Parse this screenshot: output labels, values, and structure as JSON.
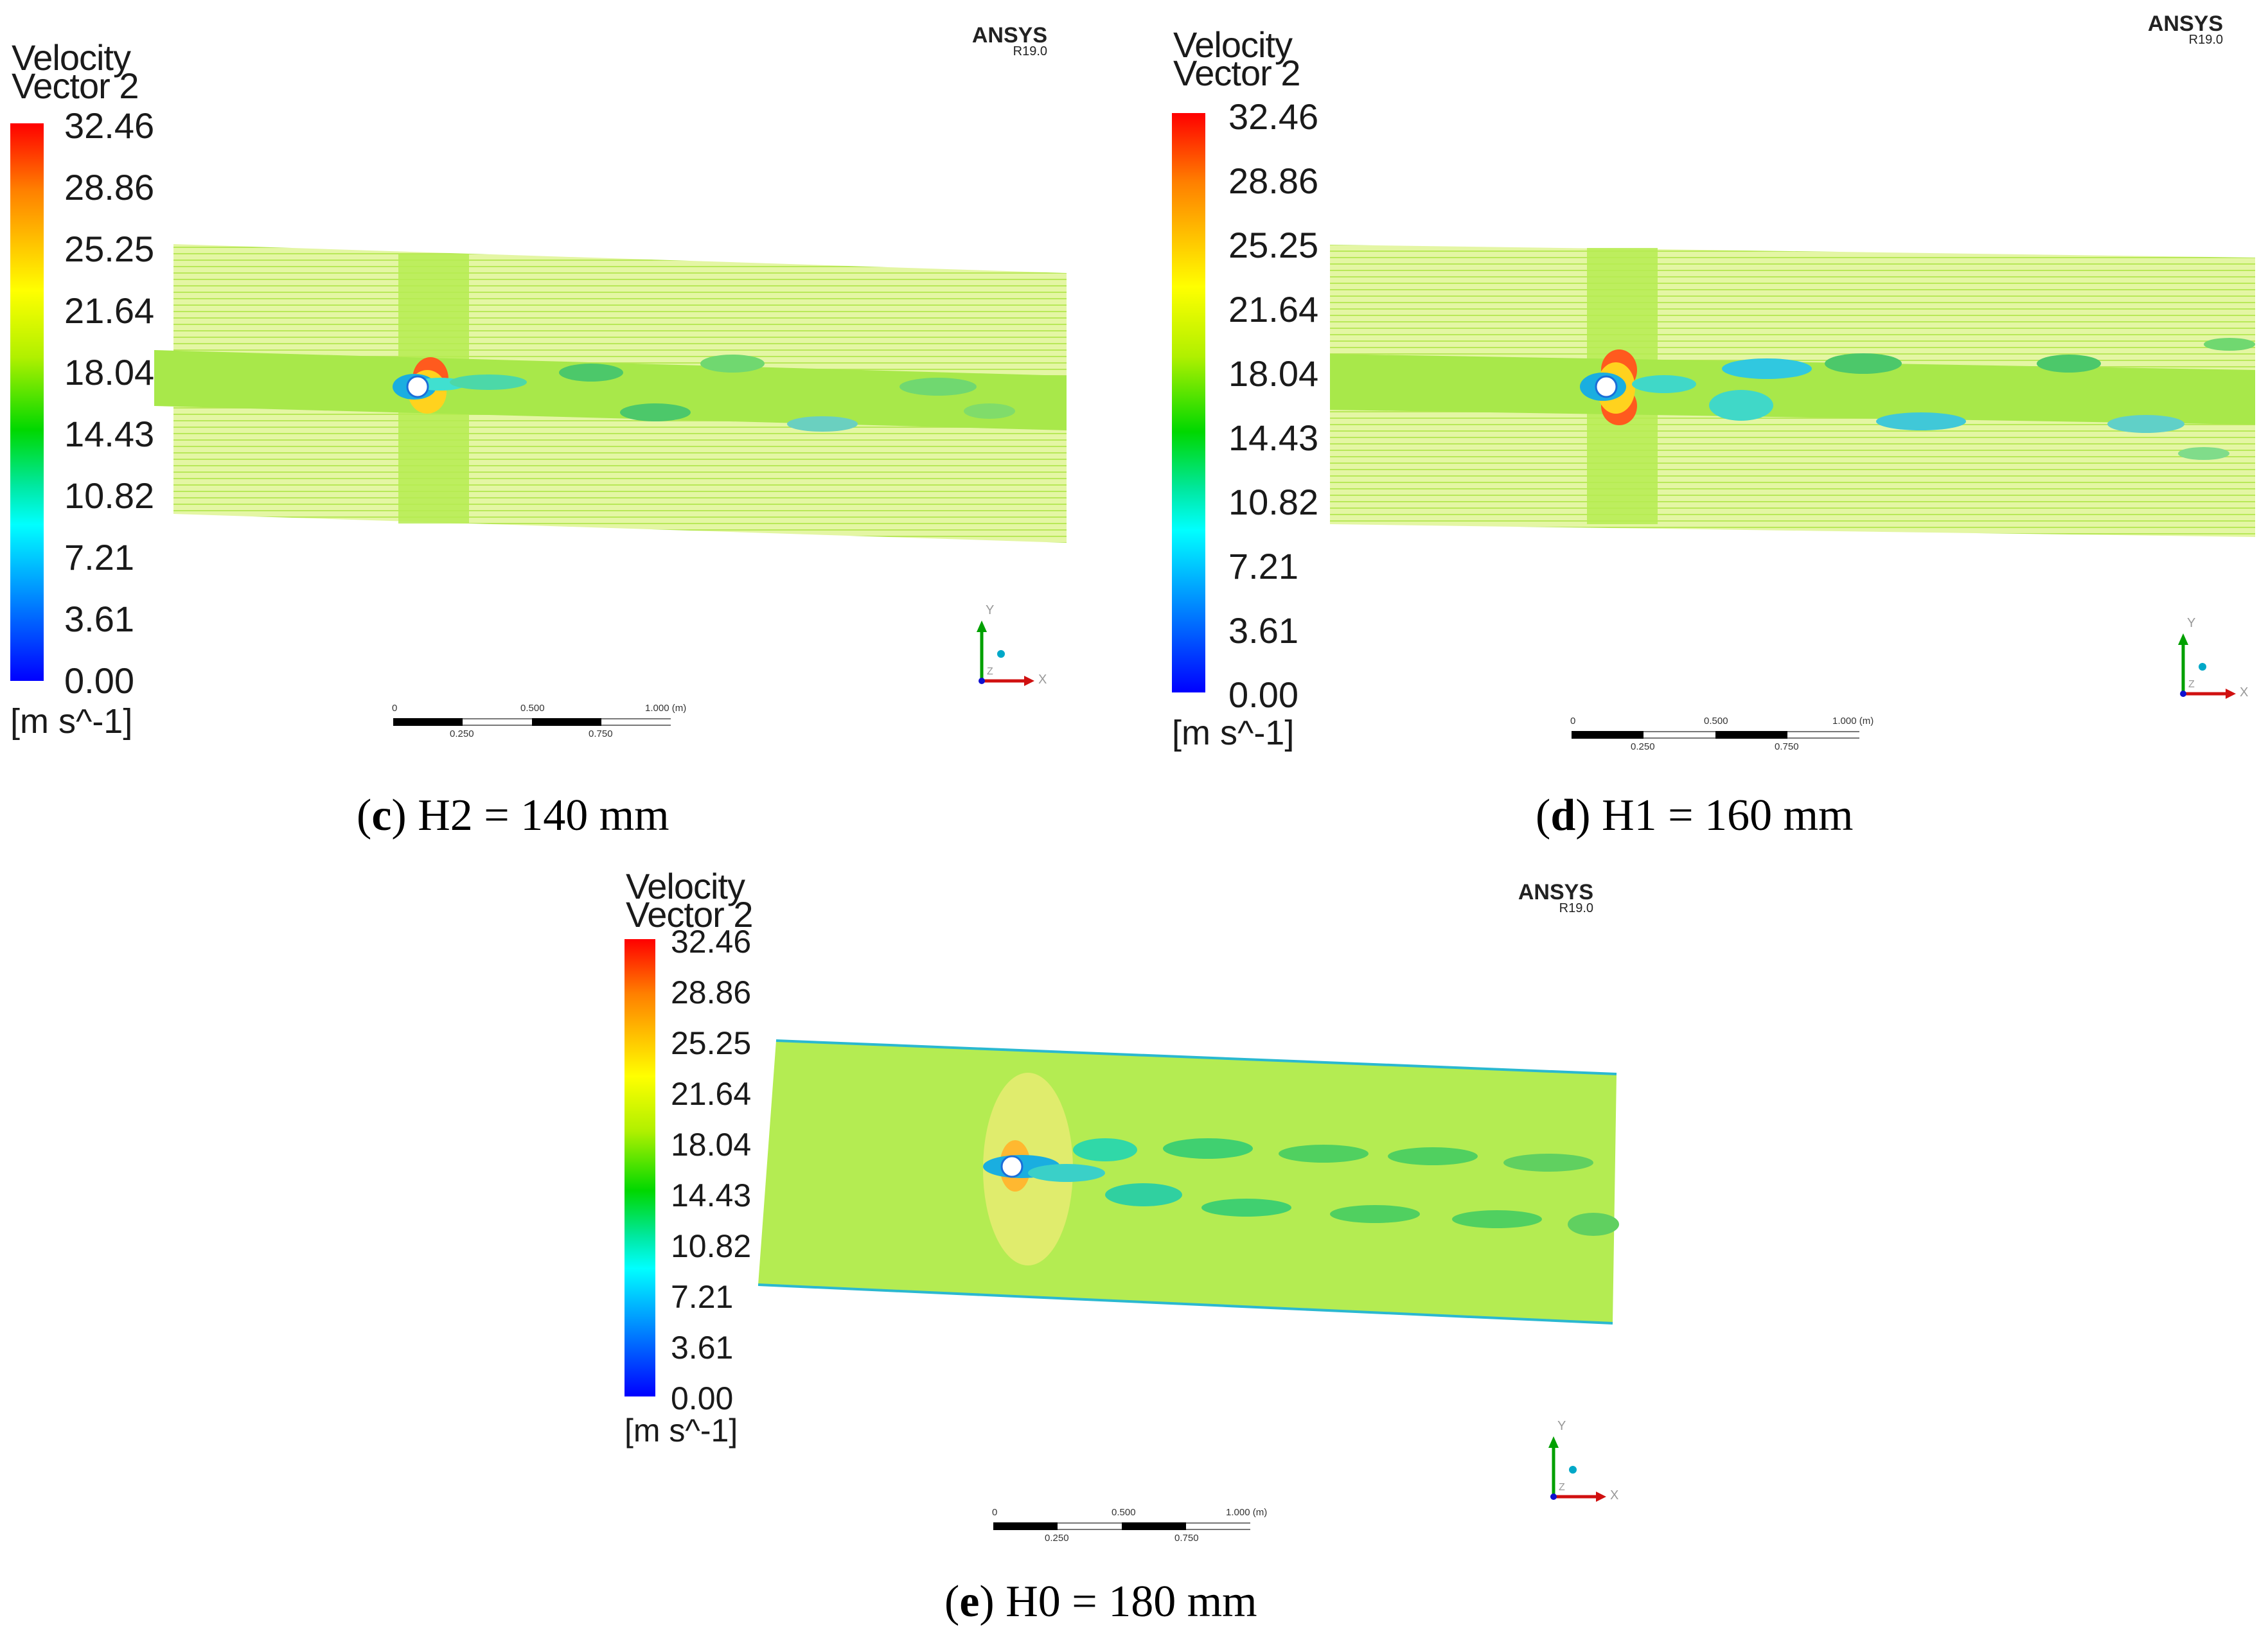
{
  "panels": [
    {
      "id": "c",
      "legend": {
        "title_line1": "Velocity",
        "title_line2": "Vector 2",
        "ticks": [
          "32.46",
          "28.86",
          "25.25",
          "21.64",
          "18.04",
          "14.43",
          "10.82",
          "7.21",
          "3.61",
          "0.00"
        ],
        "unit": "[m s^-1]"
      },
      "watermark": {
        "brand": "ANSYS",
        "version": "R19.0"
      },
      "scale": {
        "top_labels": [
          "0",
          "0.500",
          "1.000 (m)"
        ],
        "bottom_labels": [
          "0.250",
          "0.750"
        ]
      },
      "axes": {
        "y": "Y",
        "x": "X",
        "z": "Z"
      },
      "caption": {
        "letter": "c",
        "text": " H2 = 140 mm"
      }
    },
    {
      "id": "d",
      "legend": {
        "title_line1": "Velocity",
        "title_line2": "Vector 2",
        "ticks": [
          "32.46",
          "28.86",
          "25.25",
          "21.64",
          "18.04",
          "14.43",
          "10.82",
          "7.21",
          "3.61",
          "0.00"
        ],
        "unit": "[m s^-1]"
      },
      "watermark": {
        "brand": "ANSYS",
        "version": "R19.0"
      },
      "scale": {
        "top_labels": [
          "0",
          "0.500",
          "1.000 (m)"
        ],
        "bottom_labels": [
          "0.250",
          "0.750"
        ]
      },
      "axes": {
        "y": "Y",
        "x": "X",
        "z": "Z"
      },
      "caption": {
        "letter": "d",
        "text": " H1 = 160 mm"
      }
    },
    {
      "id": "e",
      "legend": {
        "title_line1": "Velocity",
        "title_line2": "Vector 2",
        "ticks": [
          "32.46",
          "28.86",
          "25.25",
          "21.64",
          "18.04",
          "14.43",
          "10.82",
          "7.21",
          "3.61",
          "0.00"
        ],
        "unit": "[m s^-1]"
      },
      "watermark": {
        "brand": "ANSYS",
        "version": "R19.0"
      },
      "scale": {
        "top_labels": [
          "0",
          "0.500",
          "1.000 (m)"
        ],
        "bottom_labels": [
          "0.250",
          "0.750"
        ]
      },
      "axes": {
        "y": "Y",
        "x": "X",
        "z": "Z"
      },
      "caption": {
        "letter": "e",
        "text": " H0 = 180 mm"
      }
    }
  ],
  "colors": {
    "field": "#c8f060",
    "field_light": "#e6f7a8",
    "wake": "#7de03a",
    "low": "#18c8e0",
    "high": "#ff5a1e"
  }
}
